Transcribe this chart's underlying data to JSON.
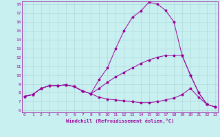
{
  "xlabel": "Windchill (Refroidissement éolien,°C)",
  "background_color": "#c8f0f0",
  "grid_color": "#b0d8d8",
  "line_color": "#990099",
  "xmin": 0,
  "xmax": 23,
  "ymin": 6,
  "ymax": 18,
  "yticks": [
    6,
    7,
    8,
    9,
    10,
    11,
    12,
    13,
    14,
    15,
    16,
    17,
    18
  ],
  "xticks": [
    0,
    1,
    2,
    3,
    4,
    5,
    6,
    7,
    8,
    9,
    10,
    11,
    12,
    13,
    14,
    15,
    16,
    17,
    18,
    19,
    20,
    21,
    22,
    23
  ],
  "series": [
    {
      "x": [
        0,
        1,
        2,
        3,
        4,
        5,
        6,
        7,
        8,
        9,
        10,
        11,
        12,
        13,
        14,
        15,
        16,
        17,
        18,
        19,
        20,
        21,
        22,
        23
      ],
      "y": [
        7.6,
        7.8,
        8.5,
        8.8,
        8.8,
        8.9,
        8.7,
        8.2,
        7.9,
        9.5,
        10.8,
        13.0,
        15.0,
        16.5,
        17.2,
        18.2,
        18.0,
        17.3,
        16.0,
        12.2,
        10.0,
        8.0,
        6.7,
        6.4
      ]
    },
    {
      "x": [
        0,
        1,
        2,
        3,
        4,
        5,
        6,
        7,
        8,
        9,
        10,
        11,
        12,
        13,
        14,
        15,
        16,
        17,
        18,
        19,
        20,
        21,
        22,
        23
      ],
      "y": [
        7.6,
        7.8,
        8.5,
        8.8,
        8.8,
        8.9,
        8.7,
        8.2,
        7.9,
        8.5,
        9.2,
        9.8,
        10.3,
        10.8,
        11.3,
        11.7,
        12.0,
        12.2,
        12.2,
        12.2,
        10.0,
        8.0,
        6.7,
        6.4
      ]
    },
    {
      "x": [
        0,
        1,
        2,
        3,
        4,
        5,
        6,
        7,
        8,
        9,
        10,
        11,
        12,
        13,
        14,
        15,
        16,
        17,
        18,
        19,
        20,
        21,
        22,
        23
      ],
      "y": [
        7.6,
        7.8,
        8.5,
        8.8,
        8.8,
        8.9,
        8.7,
        8.2,
        7.9,
        7.5,
        7.3,
        7.2,
        7.1,
        7.0,
        6.9,
        6.9,
        7.0,
        7.2,
        7.4,
        7.8,
        8.5,
        7.5,
        6.7,
        6.4
      ]
    }
  ]
}
